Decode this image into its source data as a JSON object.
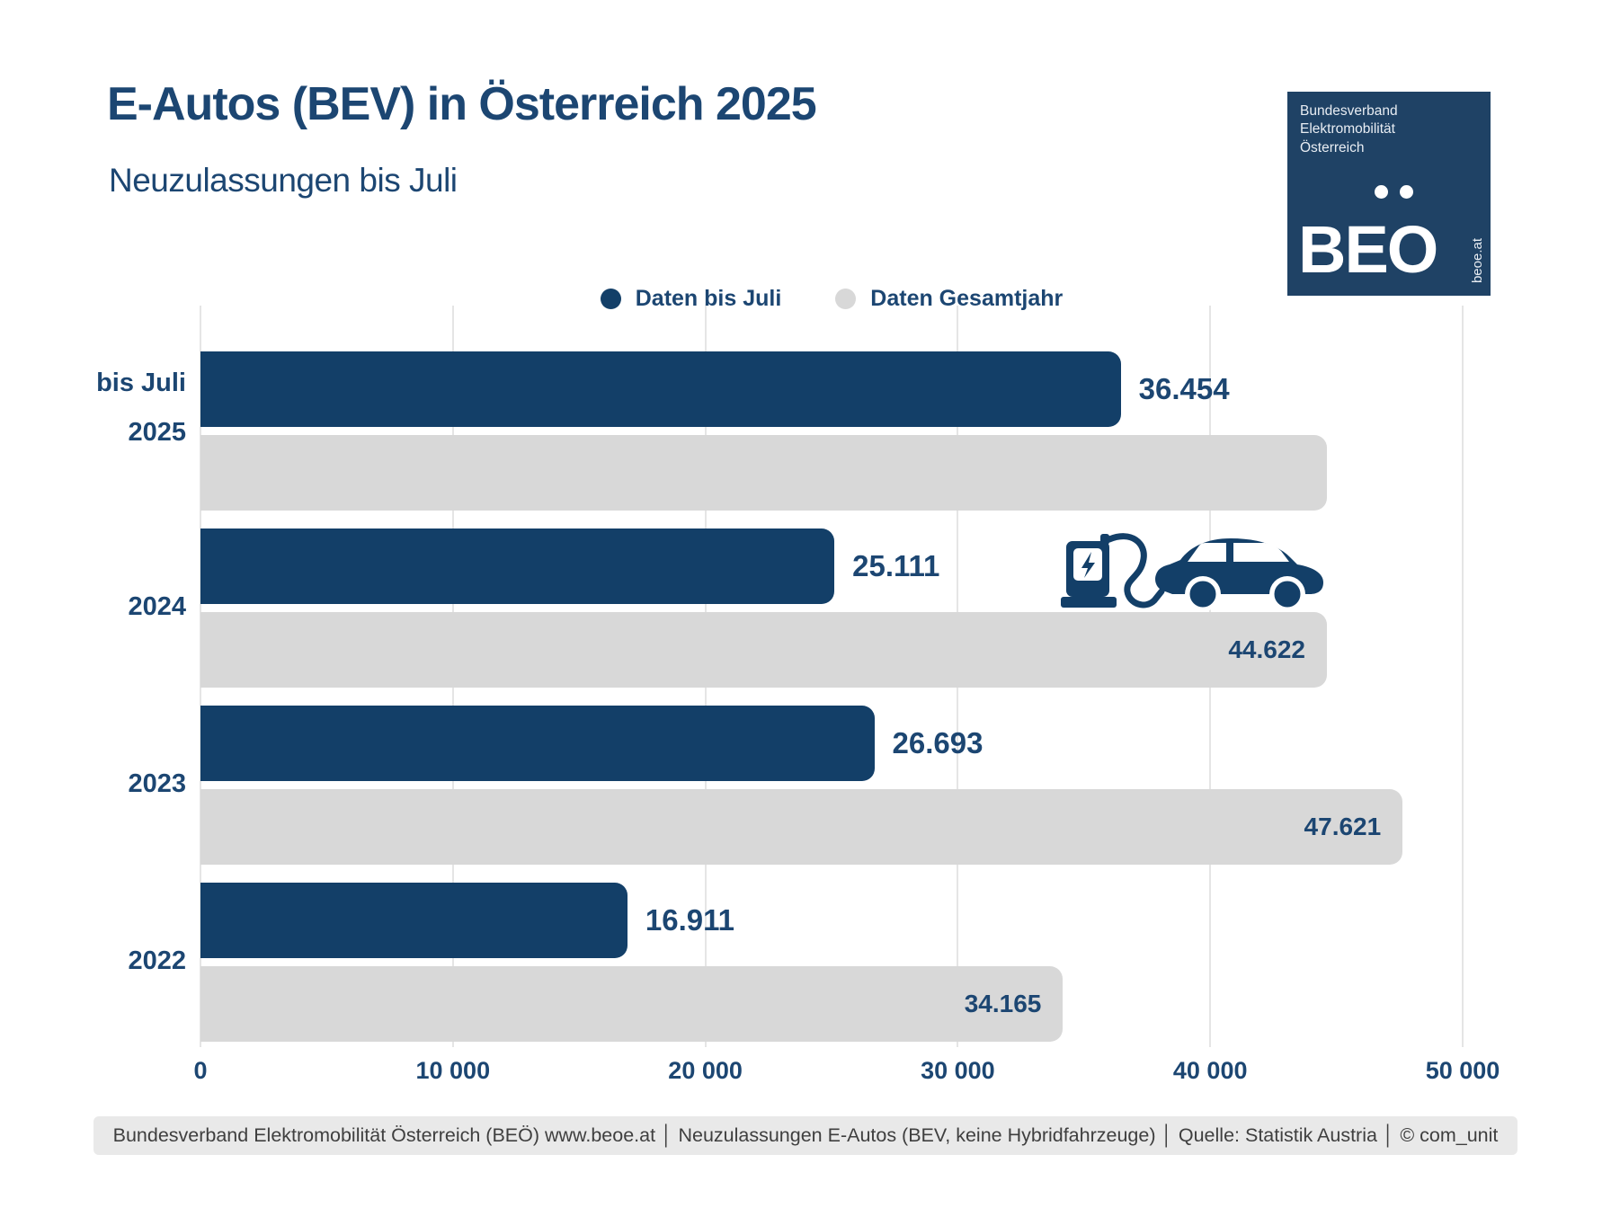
{
  "title": "E-Autos (BEV) in Österreich 2025",
  "subtitle": "Neuzulassungen bis Juli",
  "logo": {
    "org_lines": [
      "Bundesverband",
      "Elektromobilität",
      "Österreich"
    ],
    "acronym": "BEO",
    "website": "beoe.at"
  },
  "legend": {
    "items": [
      {
        "label": "Daten bis Juli",
        "color": "#133F68"
      },
      {
        "label": "Daten Gesamtjahr",
        "color": "#D8D8D8"
      }
    ]
  },
  "chart_data": {
    "type": "bar",
    "orientation": "horizontal",
    "title": "E-Autos (BEV) in Österreich 2025",
    "subtitle": "Neuzulassungen bis Juli",
    "categories": [
      "bis Juli 2025",
      "2024",
      "2023",
      "2022"
    ],
    "series": [
      {
        "name": "Daten bis Juli",
        "color": "#133F68",
        "values": [
          36454,
          25111,
          26693,
          16911
        ],
        "labels": [
          "36.454",
          "25.111",
          "26.693",
          "16.911"
        ]
      },
      {
        "name": "Daten Gesamtjahr",
        "color": "#D8D8D8",
        "values": [
          44622,
          44622,
          47621,
          34165
        ],
        "labels": [
          "",
          "44.622",
          "47.621",
          "34.165"
        ]
      }
    ],
    "xlim": [
      0,
      50000
    ],
    "x_ticks": [
      0,
      10000,
      20000,
      30000,
      40000,
      50000
    ],
    "x_tick_labels": [
      "0",
      "10 000",
      "20 000",
      "30 000",
      "40 000",
      "50 000"
    ],
    "grid": true,
    "legend_position": "top"
  },
  "rows": [
    {
      "cat_line1": "bis Juli",
      "cat_line2": "2025",
      "blue_label": "36.454",
      "gray_label": ""
    },
    {
      "cat_line1": "2024",
      "blue_label": "25.111",
      "gray_label": "44.622"
    },
    {
      "cat_line1": "2023",
      "blue_label": "26.693",
      "gray_label": "47.621"
    },
    {
      "cat_line1": "2022",
      "blue_label": "16.911",
      "gray_label": "34.165"
    }
  ],
  "icon": {
    "name": "ev-charging-car"
  },
  "footer": "Bundesverband Elektromobilität Österreich (BEÖ) www.beoe.at │ Neuzulassungen E-Autos (BEV, keine Hybridfahrzeuge) │ Quelle: Statistik Austria │ © com_unit",
  "colors": {
    "bar_blue": "#133F68",
    "bar_gray": "#D8D8D8",
    "text_navy": "#1C4672",
    "gridline": "#E5E5E5",
    "footer_bg": "#E9E9E9",
    "footer_text": "#3F3F3F",
    "logo_bg": "#1F4265"
  }
}
